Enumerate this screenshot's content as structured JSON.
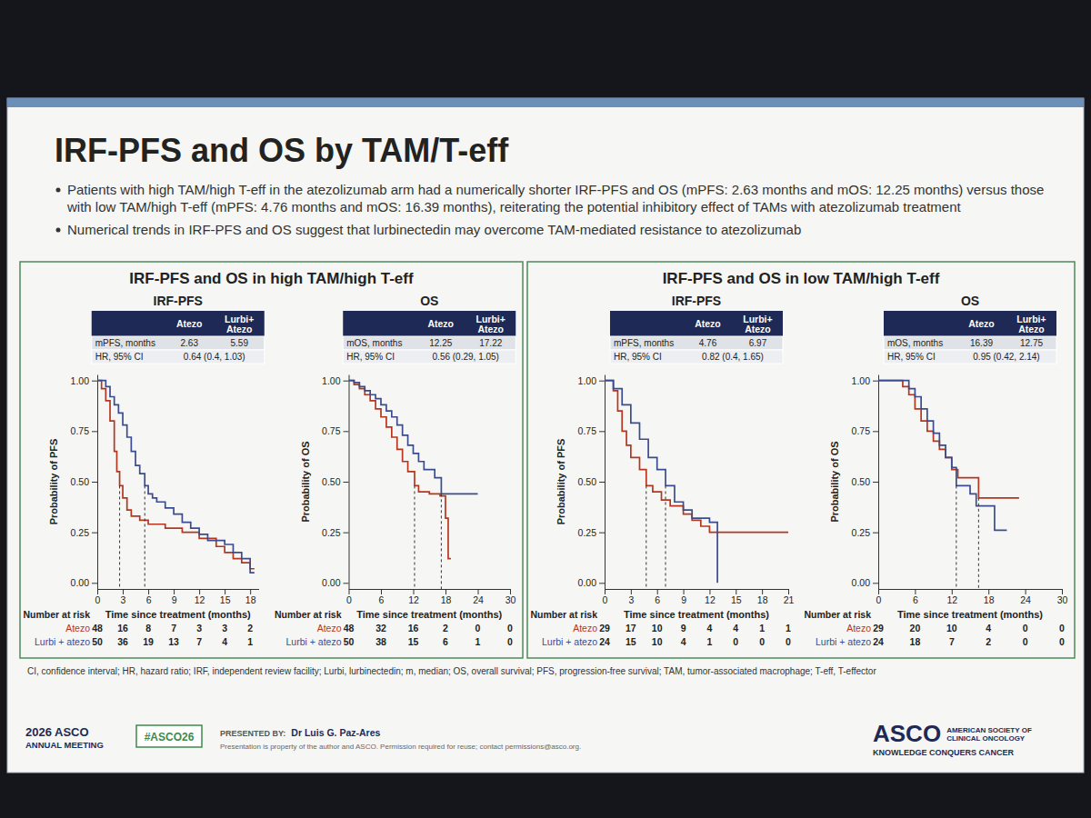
{
  "slide": {
    "title": "IRF-PFS and OS by TAM/T-eff",
    "bullets": [
      "Patients with high TAM/high T-eff in the atezolizumab arm had a numerically shorter IRF-PFS and OS (mPFS: 2.63 months and mOS: 12.25 months) versus those with low TAM/high T-eff (mPFS: 4.76 months and mOS: 16.39 months), reiterating the potential inhibitory effect of TAMs with atezolizumab treatment",
      "Numerical trends in IRF-PFS and OS suggest that lurbinectedin may overcome TAM-mediated resistance to atezolizumab"
    ],
    "panel_titles": [
      "IRF-PFS and OS in high TAM/high T-eff",
      "IRF-PFS and OS in low TAM/high T-eff"
    ],
    "footnote": "CI, confidence interval; HR, hazard ratio; IRF, independent review facility; Lurbi, lurbinectedin; m, median; OS, overall survival; PFS, progression-free survival; TAM, tumor-associated macrophage; T-eff, T-effector",
    "meeting": [
      "2026 ASCO",
      "ANNUAL MEETING"
    ],
    "hashtag": "#ASCO26",
    "presented_by_label": "PRESENTED BY:",
    "presenter": "Dr Luis G. Paz-Ares",
    "notice": "Presentation is property of the author and ASCO. Permission required for reuse; contact permissions@asco.org.",
    "logo": "ASCO",
    "society": [
      "AMERICAN SOCIETY OF",
      "CLINICAL ONCOLOGY"
    ],
    "tagline": "KNOWLEDGE CONQUERS CANCER"
  },
  "chart_data": [
    {
      "type": "line",
      "line_style": "step",
      "title": "IRF-PFS",
      "x_label": "Time since treatment (months)",
      "y_label": "Probability of PFS",
      "xlim": [
        0,
        19
      ],
      "xticks": [
        0,
        3,
        6,
        9,
        12,
        15,
        18
      ],
      "ylim": [
        -0.03,
        1.03
      ],
      "yticks": [
        {
          "value": 0,
          "label": "0.00"
        },
        0.25,
        {
          "value": 0.5,
          "label": "0.50"
        },
        0.75,
        {
          "value": 1,
          "label": "1.00"
        }
      ],
      "table": {
        "header": [
          "Atezo",
          "Lurbi+ Atezo"
        ],
        "rows": [
          {
            "label": "mPFS, months",
            "values": [
              2.63,
              5.59
            ]
          },
          {
            "label": "HR, 95% CI",
            "text": "0.64 (0.4, 1.03)"
          }
        ]
      },
      "risk_table_title": "Number at risk",
      "series": [
        {
          "name": "Atezo",
          "color": "#b5361f",
          "x": [
            0,
            0.5,
            1,
            1.5,
            2,
            2.3,
            2.63,
            3,
            3.5,
            4,
            5,
            6,
            8,
            10,
            12,
            14,
            15,
            16,
            17,
            18,
            18.5
          ],
          "values": [
            1,
            0.96,
            0.9,
            0.8,
            0.65,
            0.55,
            0.48,
            0.42,
            0.36,
            0.33,
            0.31,
            0.29,
            0.27,
            0.25,
            0.22,
            0.18,
            0.15,
            0.12,
            0.1,
            0.07,
            0.07
          ],
          "at_risk": [
            48,
            16,
            8,
            7,
            3,
            3,
            2
          ]
        },
        {
          "name": "Lurbi + atezo",
          "color": "#3a4c8f",
          "x": [
            0,
            1,
            1.5,
            2,
            2.5,
            3,
            3.5,
            4,
            4.5,
            5,
            5.59,
            6,
            6.5,
            7,
            8,
            9,
            10,
            11,
            12,
            13,
            15,
            16,
            17,
            18,
            18.5
          ],
          "values": [
            1,
            0.97,
            0.92,
            0.88,
            0.84,
            0.78,
            0.72,
            0.65,
            0.58,
            0.54,
            0.48,
            0.44,
            0.42,
            0.4,
            0.37,
            0.34,
            0.3,
            0.27,
            0.24,
            0.21,
            0.19,
            0.15,
            0.12,
            0.05,
            0.05
          ],
          "at_risk": [
            50,
            36,
            19,
            13,
            7,
            4,
            1
          ]
        }
      ]
    },
    {
      "type": "line",
      "line_style": "step",
      "title": "OS",
      "x_label": "Time since treatment (months)",
      "y_label": "Probability of OS",
      "xlim": [
        0,
        30
      ],
      "xticks": [
        0,
        6,
        12,
        18,
        24,
        30
      ],
      "ylim": [
        -0.03,
        1.03
      ],
      "yticks": [
        {
          "value": 0,
          "label": "0.00"
        },
        0.25,
        {
          "value": 0.5,
          "label": "0.50"
        },
        0.75,
        {
          "value": 1,
          "label": "1.00"
        }
      ],
      "table": {
        "header": [
          "Atezo",
          "Lurbi+ Atezo"
        ],
        "rows": [
          {
            "label": "mOS, months",
            "values": [
              12.25,
              17.22
            ]
          },
          {
            "label": "HR, 95% CI",
            "text": "0.56 (0.29, 1.05)"
          }
        ]
      },
      "risk_table_title": "Number at risk",
      "series": [
        {
          "name": "Atezo",
          "color": "#b5361f",
          "x": [
            0,
            1,
            2,
            3,
            4,
            5,
            6,
            7,
            8,
            9,
            10,
            11,
            12.25,
            13,
            15,
            17,
            18,
            18.5,
            19
          ],
          "values": [
            1,
            0.98,
            0.96,
            0.93,
            0.9,
            0.86,
            0.82,
            0.77,
            0.72,
            0.66,
            0.6,
            0.55,
            0.48,
            0.45,
            0.44,
            0.43,
            0.32,
            0.12,
            0.12
          ],
          "at_risk": [
            48,
            32,
            16,
            2,
            0,
            0
          ]
        },
        {
          "name": "Lurbi + atezo",
          "color": "#3a4c8f",
          "x": [
            0,
            1,
            2,
            3,
            4,
            5,
            6,
            7,
            8,
            9,
            10,
            11,
            12,
            13,
            14,
            16,
            17.22,
            18,
            24
          ],
          "values": [
            1,
            0.99,
            0.97,
            0.95,
            0.93,
            0.91,
            0.88,
            0.85,
            0.82,
            0.78,
            0.73,
            0.68,
            0.64,
            0.6,
            0.56,
            0.52,
            0.44,
            0.44,
            0.44
          ],
          "at_risk": [
            50,
            38,
            15,
            6,
            1,
            0
          ]
        }
      ]
    },
    {
      "type": "line",
      "line_style": "step",
      "title": "IRF-PFS",
      "x_label": "Time since treatment (months)",
      "y_label": "Probability of PFS",
      "xlim": [
        0,
        21
      ],
      "xticks": [
        0,
        3,
        6,
        9,
        12,
        15,
        18,
        21
      ],
      "ylim": [
        -0.03,
        1.03
      ],
      "yticks": [
        {
          "value": 0,
          "label": "0.00"
        },
        0.25,
        {
          "value": 0.5,
          "label": "0.50"
        },
        0.75,
        {
          "value": 1,
          "label": "1.00"
        }
      ],
      "table": {
        "header": [
          "Atezo",
          "Lurbi+ Atezo"
        ],
        "rows": [
          {
            "label": "mPFS, months",
            "values": [
              4.76,
              6.97
            ]
          },
          {
            "label": "HR, 95% CI",
            "text": "0.82 (0.4, 1.65)"
          }
        ]
      },
      "risk_table_title": "Number at risk",
      "series": [
        {
          "name": "Atezo",
          "color": "#b5361f",
          "x": [
            0,
            1,
            1.5,
            2,
            2.5,
            3,
            4,
            4.76,
            5.5,
            6.5,
            7.5,
            9,
            10,
            11,
            12,
            21
          ],
          "values": [
            1,
            0.95,
            0.85,
            0.75,
            0.68,
            0.62,
            0.56,
            0.48,
            0.45,
            0.41,
            0.38,
            0.34,
            0.31,
            0.28,
            0.25,
            0.25
          ],
          "at_risk": [
            29,
            17,
            10,
            9,
            4,
            4,
            1,
            1
          ]
        },
        {
          "name": "Lurbi + atezo",
          "color": "#3a4c8f",
          "x": [
            0,
            1,
            2,
            3,
            4,
            5,
            6,
            6.97,
            8,
            9,
            10,
            12,
            12.9
          ],
          "values": [
            1,
            0.96,
            0.88,
            0.79,
            0.71,
            0.62,
            0.56,
            0.48,
            0.4,
            0.36,
            0.32,
            0.3,
            0
          ],
          "at_risk": [
            24,
            15,
            10,
            4,
            1,
            0,
            0,
            0
          ]
        }
      ]
    },
    {
      "type": "line",
      "line_style": "step",
      "title": "OS",
      "x_label": "Time since treatment (months)",
      "y_label": "Probability of OS",
      "xlim": [
        0,
        30
      ],
      "xticks": [
        0,
        6,
        12,
        18,
        24,
        30
      ],
      "ylim": [
        -0.03,
        1.03
      ],
      "yticks": [
        {
          "value": 0,
          "label": "0.00"
        },
        0.25,
        {
          "value": 0.5,
          "label": "0.50"
        },
        0.75,
        {
          "value": 1,
          "label": "1.00"
        }
      ],
      "table": {
        "header": [
          "Atezo",
          "Lurbi+ Atezo"
        ],
        "rows": [
          {
            "label": "mOS, months",
            "values": [
              16.39,
              12.75
            ]
          },
          {
            "label": "HR, 95% CI",
            "text": "0.95 (0.42, 2.14)"
          }
        ]
      },
      "risk_table_title": "Number at risk",
      "series": [
        {
          "name": "Atezo",
          "color": "#b5361f",
          "x": [
            0,
            3,
            4,
            5,
            6,
            7,
            8,
            9,
            10,
            11,
            12,
            13,
            16.39,
            23
          ],
          "values": [
            1,
            1,
            0.97,
            0.93,
            0.86,
            0.8,
            0.75,
            0.7,
            0.66,
            0.62,
            0.56,
            0.52,
            0.42,
            0.42
          ],
          "at_risk": [
            29,
            20,
            10,
            4,
            0,
            0
          ]
        },
        {
          "name": "Lurbi + atezo",
          "color": "#3a4c8f",
          "x": [
            0,
            4,
            5,
            6,
            7,
            8,
            9,
            10,
            11,
            12,
            12.75,
            15,
            16,
            19,
            21
          ],
          "values": [
            1,
            1,
            0.96,
            0.92,
            0.86,
            0.8,
            0.74,
            0.68,
            0.62,
            0.57,
            0.48,
            0.44,
            0.38,
            0.26,
            0.26
          ],
          "at_risk": [
            24,
            18,
            7,
            2,
            0,
            0
          ]
        }
      ]
    }
  ]
}
